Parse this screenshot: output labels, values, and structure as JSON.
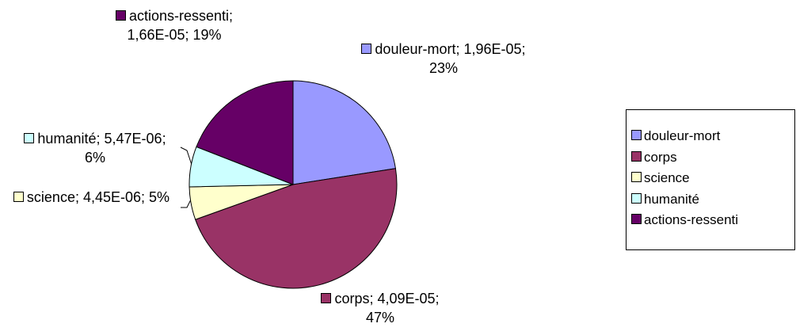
{
  "chart_data": {
    "type": "pie",
    "categories": [
      "douleur-mort",
      "corps",
      "science",
      "humanité",
      "actions-ressenti"
    ],
    "values": [
      1.96e-05,
      4.09e-05,
      4.45e-06,
      5.47e-06,
      1.66e-05
    ],
    "value_labels": [
      "1,96E-05",
      "4,09E-05",
      "4,45E-06",
      "5,47E-06",
      "1,66E-05"
    ],
    "percent_labels": [
      "23%",
      "47%",
      "5%",
      "6%",
      "19%"
    ],
    "label_separator": "; ",
    "colors": [
      "#9999ff",
      "#993366",
      "#ffffcc",
      "#ccffff",
      "#660066"
    ],
    "legend": "right"
  }
}
